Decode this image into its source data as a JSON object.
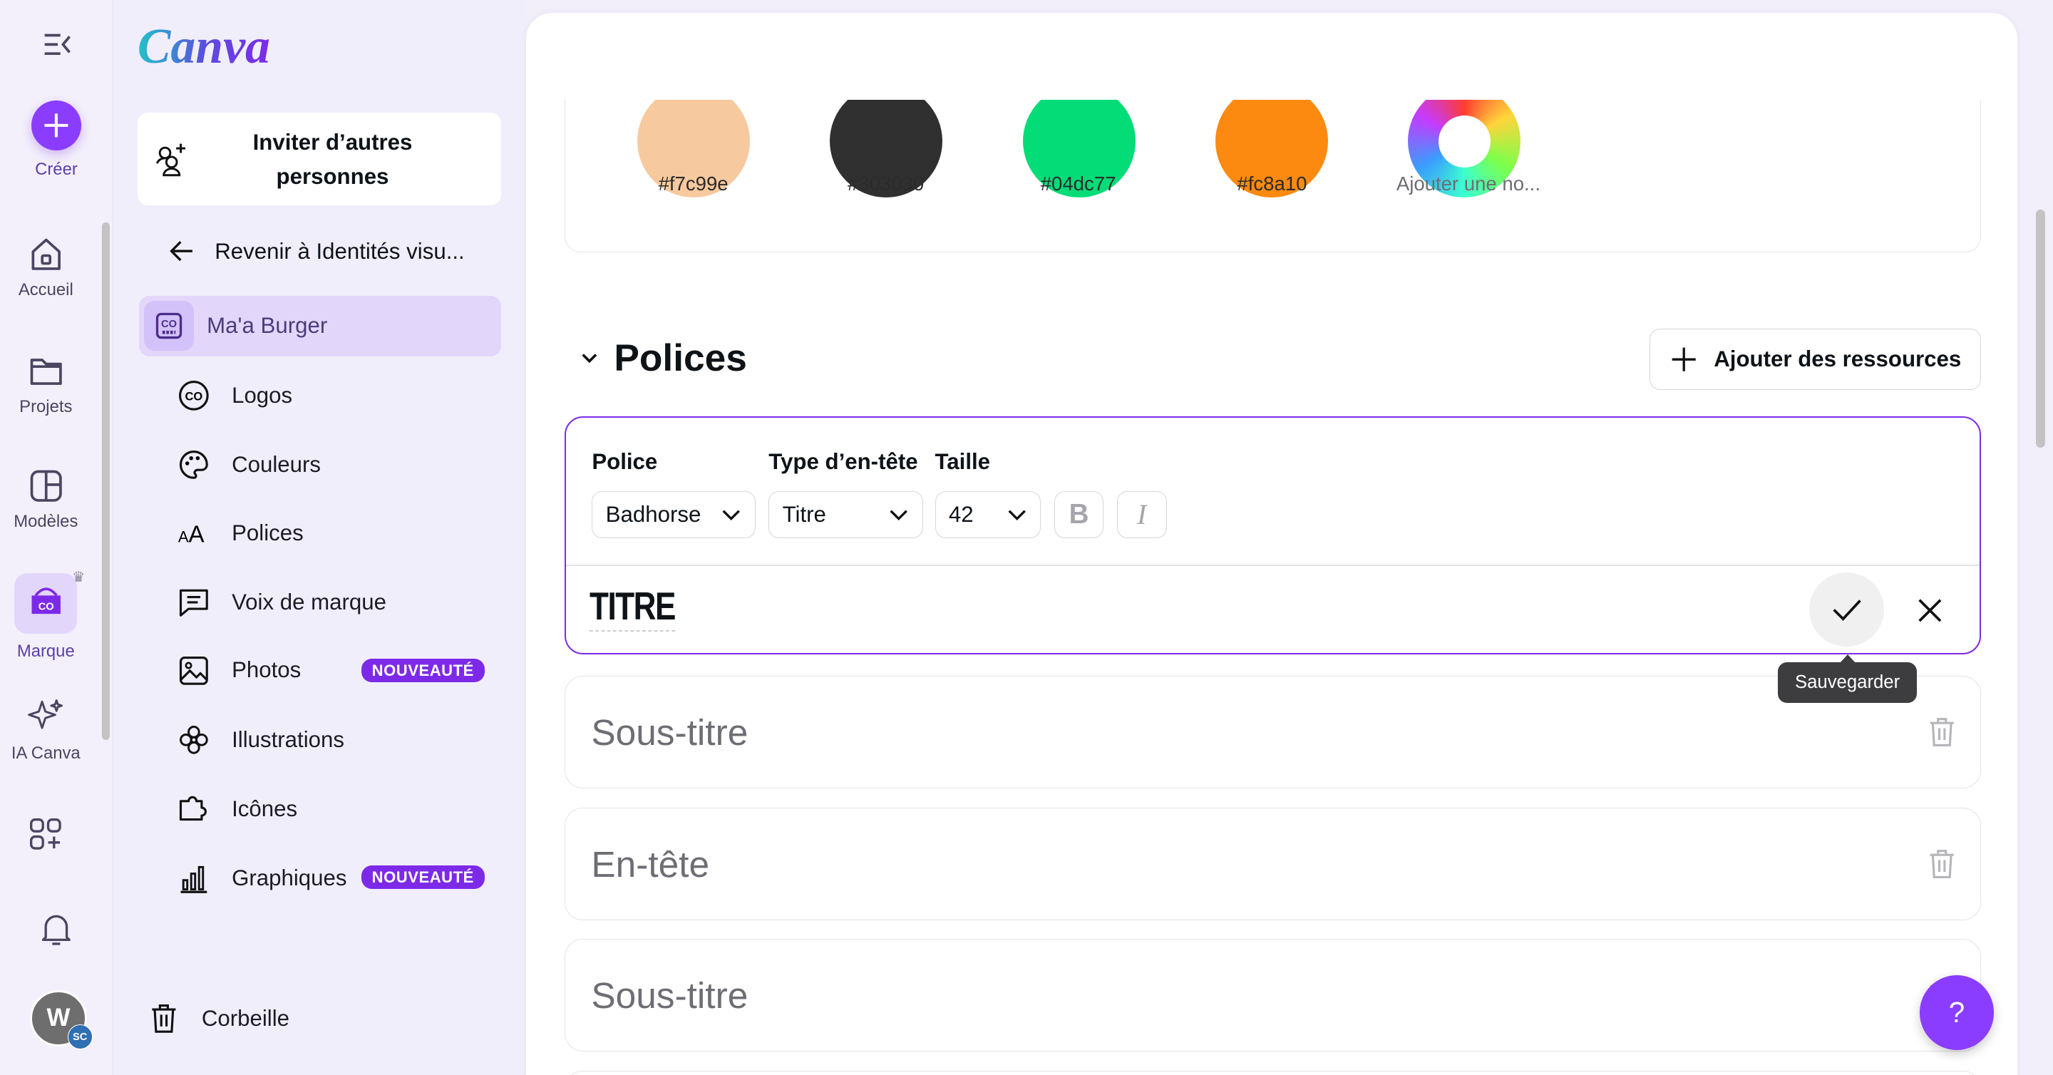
{
  "rail": {
    "create": "Créer",
    "items": [
      {
        "label": "Accueil",
        "icon": "home-icon"
      },
      {
        "label": "Projets",
        "icon": "folder-icon"
      },
      {
        "label": "Modèles",
        "icon": "templates-icon"
      },
      {
        "label": "Marque",
        "icon": "brand-icon"
      },
      {
        "label": "IA Canva",
        "icon": "sparkle-icon"
      }
    ],
    "avatar": "W",
    "avatar_badge": "SC"
  },
  "panel": {
    "logo": "Canva",
    "invite": "Inviter d’autres personnes",
    "back": "Revenir à Identités visu...",
    "brand": "Ma'a Burger",
    "items": [
      {
        "label": "Logos"
      },
      {
        "label": "Couleurs"
      },
      {
        "label": "Polices"
      },
      {
        "label": "Voix de marque"
      },
      {
        "label": "Photos",
        "badge": "NOUVEAUTÉ"
      },
      {
        "label": "Illustrations"
      },
      {
        "label": "Icônes"
      },
      {
        "label": "Graphiques",
        "badge": "NOUVEAUTÉ"
      }
    ],
    "trash": "Corbeille"
  },
  "colors": [
    {
      "hex": "#f7c99e",
      "label": "#f7c99e"
    },
    {
      "hex": "#303030",
      "label": "#303030"
    },
    {
      "hex": "#04dc77",
      "label": "#04dc77"
    },
    {
      "hex": "#fc8a10",
      "label": "#fc8a10"
    }
  ],
  "add_color": "Ajouter une no...",
  "fonts": {
    "title": "Polices",
    "add_button": "Ajouter des ressources",
    "editor": {
      "font_label": "Police",
      "type_label": "Type d’en-tête",
      "size_label": "Taille",
      "font": "Badhorse",
      "type": "Titre",
      "size": "42",
      "bold": "B",
      "italic": "I",
      "preview": "TITRE",
      "tooltip": "Sauvegarder"
    },
    "rows": [
      "Sous-titre",
      "En-tête",
      "Sous-titre"
    ]
  },
  "help": "?",
  "accent": "#7d2ae8"
}
